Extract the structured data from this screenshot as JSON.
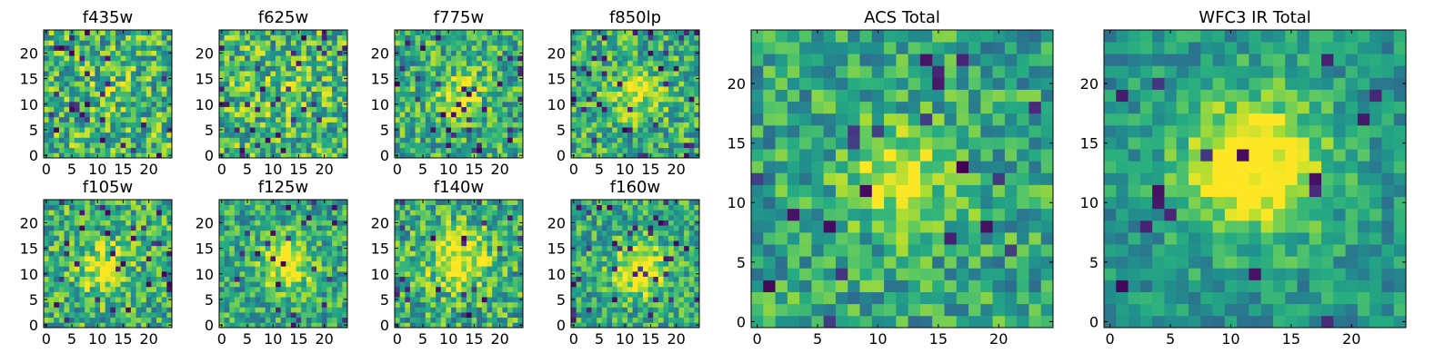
{
  "chart_data": [
    {
      "type": "heatmap",
      "title": "f435w",
      "grid": 25,
      "seed": 11,
      "xticks": [
        0,
        5,
        10,
        15,
        20
      ],
      "yticks": [
        0,
        5,
        10,
        15,
        20
      ],
      "source": {
        "cx": 12,
        "cy": 12,
        "sigma": 3.5,
        "amp": 0.05
      },
      "noise_level": 0.62,
      "dark_prob": 0.04
    },
    {
      "type": "heatmap",
      "title": "f625w",
      "grid": 25,
      "seed": 23,
      "xticks": [
        0,
        5,
        10,
        15,
        20
      ],
      "yticks": [
        0,
        5,
        10,
        15,
        20
      ],
      "source": {
        "cx": 12,
        "cy": 12,
        "sigma": 3.5,
        "amp": 0.1
      },
      "noise_level": 0.62,
      "dark_prob": 0.05
    },
    {
      "type": "heatmap",
      "title": "f775w",
      "grid": 25,
      "seed": 37,
      "xticks": [
        0,
        5,
        10,
        15,
        20
      ],
      "yticks": [
        0,
        5,
        10,
        15,
        20
      ],
      "source": {
        "cx": 12,
        "cy": 12,
        "sigma": 3.2,
        "amp": 0.3
      },
      "noise_level": 0.55,
      "dark_prob": 0.05
    },
    {
      "type": "heatmap",
      "title": "f850lp",
      "grid": 25,
      "seed": 41,
      "xticks": [
        0,
        5,
        10,
        15,
        20
      ],
      "yticks": [
        0,
        5,
        10,
        15,
        20
      ],
      "source": {
        "cx": 12,
        "cy": 12,
        "sigma": 3.0,
        "amp": 0.35
      },
      "noise_level": 0.55,
      "dark_prob": 0.05
    },
    {
      "type": "heatmap",
      "title": "f105w",
      "grid": 25,
      "seed": 53,
      "xticks": [
        0,
        5,
        10,
        15,
        20
      ],
      "yticks": [
        0,
        5,
        10,
        15,
        20
      ],
      "source": {
        "cx": 11,
        "cy": 11,
        "sigma": 3.5,
        "amp": 0.35
      },
      "noise_level": 0.55,
      "dark_prob": 0.05
    },
    {
      "type": "heatmap",
      "title": "f125w",
      "grid": 25,
      "seed": 67,
      "xticks": [
        0,
        5,
        10,
        15,
        20
      ],
      "yticks": [
        0,
        5,
        10,
        15,
        20
      ],
      "source": {
        "cx": 13,
        "cy": 12,
        "sigma": 3.5,
        "amp": 0.45
      },
      "noise_level": 0.5,
      "dark_prob": 0.04
    },
    {
      "type": "heatmap",
      "title": "f140w",
      "grid": 25,
      "seed": 79,
      "xticks": [
        0,
        5,
        10,
        15,
        20
      ],
      "yticks": [
        0,
        5,
        10,
        15,
        20
      ],
      "source": {
        "cx": 12,
        "cy": 13,
        "sigma": 4.0,
        "amp": 0.4
      },
      "noise_level": 0.55,
      "dark_prob": 0.05
    },
    {
      "type": "heatmap",
      "title": "f160w",
      "grid": 25,
      "seed": 83,
      "xticks": [
        0,
        5,
        10,
        15,
        20
      ],
      "yticks": [
        0,
        5,
        10,
        15,
        20
      ],
      "source": {
        "cx": 13,
        "cy": 11,
        "sigma": 3.5,
        "amp": 0.5
      },
      "noise_level": 0.5,
      "dark_prob": 0.05
    },
    {
      "type": "heatmap",
      "title": "ACS Total",
      "grid": 25,
      "seed": 97,
      "xticks": [
        0,
        5,
        10,
        15,
        20
      ],
      "yticks": [
        0,
        5,
        10,
        15,
        20
      ],
      "source": {
        "cx": 12,
        "cy": 12,
        "sigma": 3.2,
        "amp": 0.38
      },
      "noise_level": 0.48,
      "dark_prob": 0.035
    },
    {
      "type": "heatmap",
      "title": "WFC3 IR Total",
      "grid": 25,
      "seed": 101,
      "xticks": [
        0,
        5,
        10,
        15,
        20
      ],
      "yticks": [
        0,
        5,
        10,
        15,
        20
      ],
      "source": {
        "cx": 12,
        "cy": 13,
        "sigma": 4.2,
        "amp": 0.6
      },
      "noise_level": 0.35,
      "dark_prob": 0.03
    }
  ]
}
